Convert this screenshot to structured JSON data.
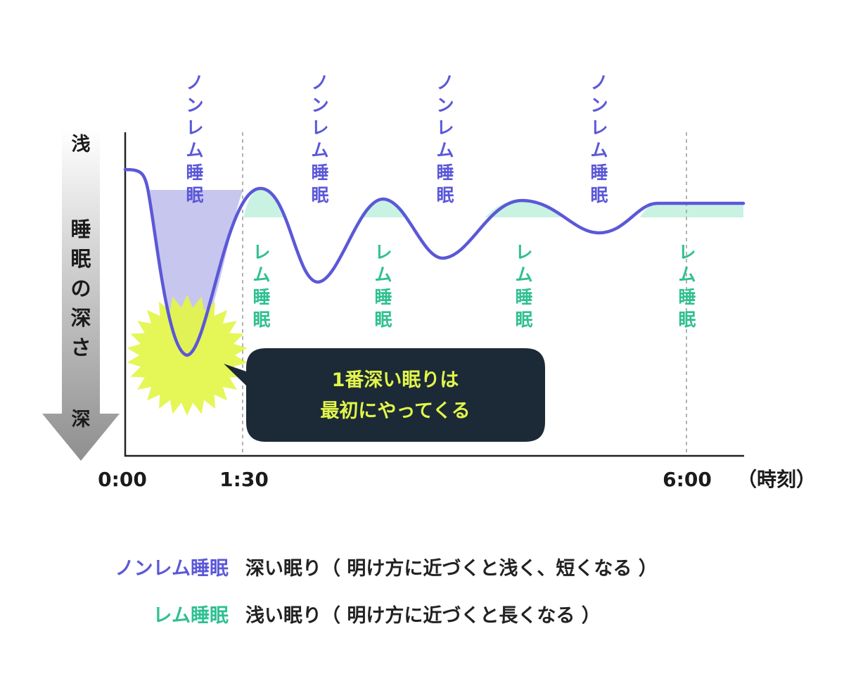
{
  "colors": {
    "nonrem": "#5b58d8",
    "rem": "#2fc091",
    "rem_fill": "#c9f2e3",
    "nonrem_fill": "#c7c6ef",
    "starburst": "#e3f54a",
    "bubble": "#1b2a36",
    "bubble_text": "#e3f54a",
    "axis": "#222222",
    "dashed": "#9a9a9a"
  },
  "depth_axis": {
    "top": "浅",
    "label": "睡眠の深さ",
    "bottom": "深"
  },
  "stage_labels": {
    "nonrem": [
      "ノンレム睡眠",
      "ノンレム睡眠",
      "ノンレム睡眠",
      "ノンレム睡眠"
    ],
    "rem": [
      "レム睡眠",
      "レム睡眠",
      "レム睡眠",
      "レム睡眠"
    ]
  },
  "time_axis": {
    "ticks": [
      "0:00",
      "1:30",
      "6:00"
    ],
    "unit": "（時刻）"
  },
  "callout": {
    "line1": "1番深い眠りは",
    "line2": "最初にやってくる"
  },
  "legend": {
    "nonrem_term": "ノンレム睡眠",
    "nonrem_desc": "深い眠り（ 明け方に近づくと浅く、短くなる ）",
    "rem_term": "レム睡眠",
    "rem_desc": "浅い眠り（ 明け方に近づくと長くなる ）"
  },
  "icons": [
    "down-arrow-icon",
    "starburst-icon"
  ]
}
